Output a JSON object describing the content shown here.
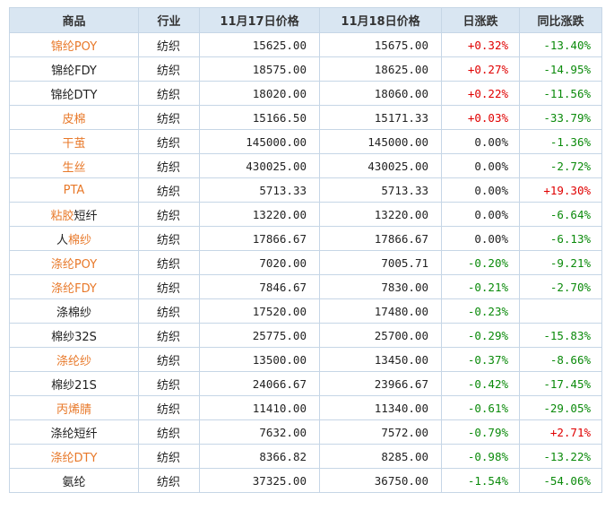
{
  "headers": [
    "商品",
    "行业",
    "11月17日价格",
    "11月18日价格",
    "日涨跌",
    "同比涨跌"
  ],
  "rows": [
    {
      "name": "锦纶POY",
      "name_color": "orange",
      "industry": "纺织",
      "p17": "15625.00",
      "p18": "15675.00",
      "day": "+0.32%",
      "day_dir": "up",
      "yoy": "-13.40%",
      "yoy_dir": "down"
    },
    {
      "name": "锦纶FDY",
      "name_color": "black",
      "industry": "纺织",
      "p17": "18575.00",
      "p18": "18625.00",
      "day": "+0.27%",
      "day_dir": "up",
      "yoy": "-14.95%",
      "yoy_dir": "down"
    },
    {
      "name": "锦纶DTY",
      "name_color": "black",
      "industry": "纺织",
      "p17": "18020.00",
      "p18": "18060.00",
      "day": "+0.22%",
      "day_dir": "up",
      "yoy": "-11.56%",
      "yoy_dir": "down"
    },
    {
      "name": "皮棉",
      "name_color": "orange",
      "industry": "纺织",
      "p17": "15166.50",
      "p18": "15171.33",
      "day": "+0.03%",
      "day_dir": "up",
      "yoy": "-33.79%",
      "yoy_dir": "down"
    },
    {
      "name": "干茧",
      "name_color": "orange",
      "industry": "纺织",
      "p17": "145000.00",
      "p18": "145000.00",
      "day": "0.00%",
      "day_dir": "flat",
      "yoy": "-1.36%",
      "yoy_dir": "down"
    },
    {
      "name": "生丝",
      "name_color": "orange",
      "industry": "纺织",
      "p17": "430025.00",
      "p18": "430025.00",
      "day": "0.00%",
      "day_dir": "flat",
      "yoy": "-2.72%",
      "yoy_dir": "down"
    },
    {
      "name": "PTA",
      "name_color": "orange",
      "industry": "纺织",
      "p17": "5713.33",
      "p18": "5713.33",
      "day": "0.00%",
      "day_dir": "flat",
      "yoy": "+19.30%",
      "yoy_dir": "up"
    },
    {
      "name_parts": [
        {
          "t": "粘胶",
          "c": "orange"
        },
        {
          "t": "短纤",
          "c": "black"
        }
      ],
      "industry": "纺织",
      "p17": "13220.00",
      "p18": "13220.00",
      "day": "0.00%",
      "day_dir": "flat",
      "yoy": "-6.64%",
      "yoy_dir": "down"
    },
    {
      "name_parts": [
        {
          "t": "人",
          "c": "black"
        },
        {
          "t": "棉纱",
          "c": "orange"
        }
      ],
      "industry": "纺织",
      "p17": "17866.67",
      "p18": "17866.67",
      "day": "0.00%",
      "day_dir": "flat",
      "yoy": "-6.13%",
      "yoy_dir": "down"
    },
    {
      "name": "涤纶POY",
      "name_color": "orange",
      "industry": "纺织",
      "p17": "7020.00",
      "p18": "7005.71",
      "day": "-0.20%",
      "day_dir": "down",
      "yoy": "-9.21%",
      "yoy_dir": "down"
    },
    {
      "name": "涤纶FDY",
      "name_color": "orange",
      "industry": "纺织",
      "p17": "7846.67",
      "p18": "7830.00",
      "day": "-0.21%",
      "day_dir": "down",
      "yoy": "-2.70%",
      "yoy_dir": "down"
    },
    {
      "name": "涤棉纱",
      "name_color": "black",
      "industry": "纺织",
      "p17": "17520.00",
      "p18": "17480.00",
      "day": "-0.23%",
      "day_dir": "down",
      "yoy": "",
      "yoy_dir": "flat"
    },
    {
      "name": "棉纱32S",
      "name_color": "black",
      "industry": "纺织",
      "p17": "25775.00",
      "p18": "25700.00",
      "day": "-0.29%",
      "day_dir": "down",
      "yoy": "-15.83%",
      "yoy_dir": "down"
    },
    {
      "name": "涤纶纱",
      "name_color": "orange",
      "industry": "纺织",
      "p17": "13500.00",
      "p18": "13450.00",
      "day": "-0.37%",
      "day_dir": "down",
      "yoy": "-8.66%",
      "yoy_dir": "down"
    },
    {
      "name": "棉纱21S",
      "name_color": "black",
      "industry": "纺织",
      "p17": "24066.67",
      "p18": "23966.67",
      "day": "-0.42%",
      "day_dir": "down",
      "yoy": "-17.45%",
      "yoy_dir": "down"
    },
    {
      "name": "丙烯腈",
      "name_color": "orange",
      "industry": "纺织",
      "p17": "11410.00",
      "p18": "11340.00",
      "day": "-0.61%",
      "day_dir": "down",
      "yoy": "-29.05%",
      "yoy_dir": "down"
    },
    {
      "name": "涤纶短纤",
      "name_color": "black",
      "industry": "纺织",
      "p17": "7632.00",
      "p18": "7572.00",
      "day": "-0.79%",
      "day_dir": "down",
      "yoy": "+2.71%",
      "yoy_dir": "up"
    },
    {
      "name": "涤纶DTY",
      "name_color": "orange",
      "industry": "纺织",
      "p17": "8366.82",
      "p18": "8285.00",
      "day": "-0.98%",
      "day_dir": "down",
      "yoy": "-13.22%",
      "yoy_dir": "down"
    },
    {
      "name": "氨纶",
      "name_color": "black",
      "industry": "纺织",
      "p17": "37325.00",
      "p18": "36750.00",
      "day": "-1.54%",
      "day_dir": "down",
      "yoy": "-54.06%",
      "yoy_dir": "down"
    }
  ]
}
